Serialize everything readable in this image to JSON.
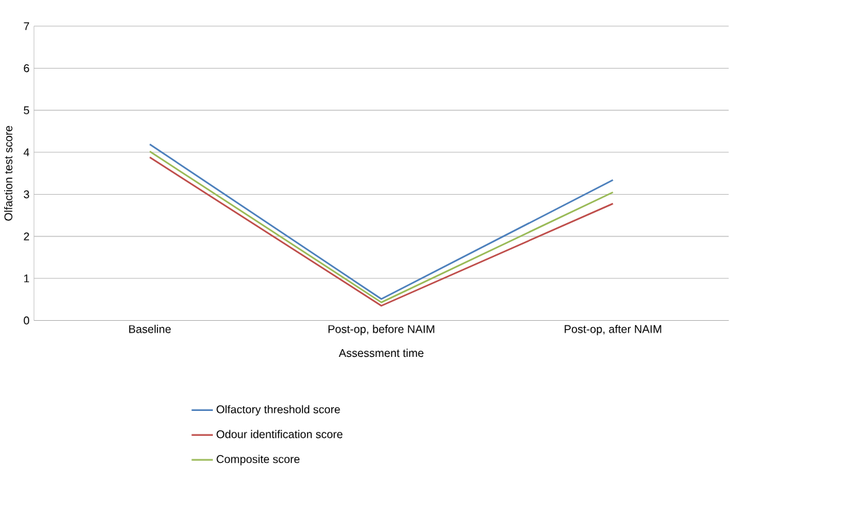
{
  "chart_data": {
    "type": "line",
    "xlabel": "Assessment time",
    "ylabel": "Olfaction test score",
    "categories": [
      "Baseline",
      "Post-op, before NAIM",
      "Post-op, after NAIM"
    ],
    "series": [
      {
        "name": "Olfactory threshold score",
        "color": "#4a7ebb",
        "values": [
          4.19,
          0.51,
          3.34
        ]
      },
      {
        "name": "Odour identification score",
        "color": "#be4b48",
        "values": [
          3.88,
          0.35,
          2.78
        ]
      },
      {
        "name": "Composite score",
        "color": "#98b954",
        "values": [
          4.02,
          0.43,
          3.05
        ]
      }
    ],
    "ylim": [
      0,
      7
    ],
    "yticks": [
      0,
      1,
      2,
      3,
      4,
      5,
      6,
      7
    ],
    "grid": "y",
    "legend": "bottom",
    "marker": "none",
    "line_style": "solid"
  }
}
